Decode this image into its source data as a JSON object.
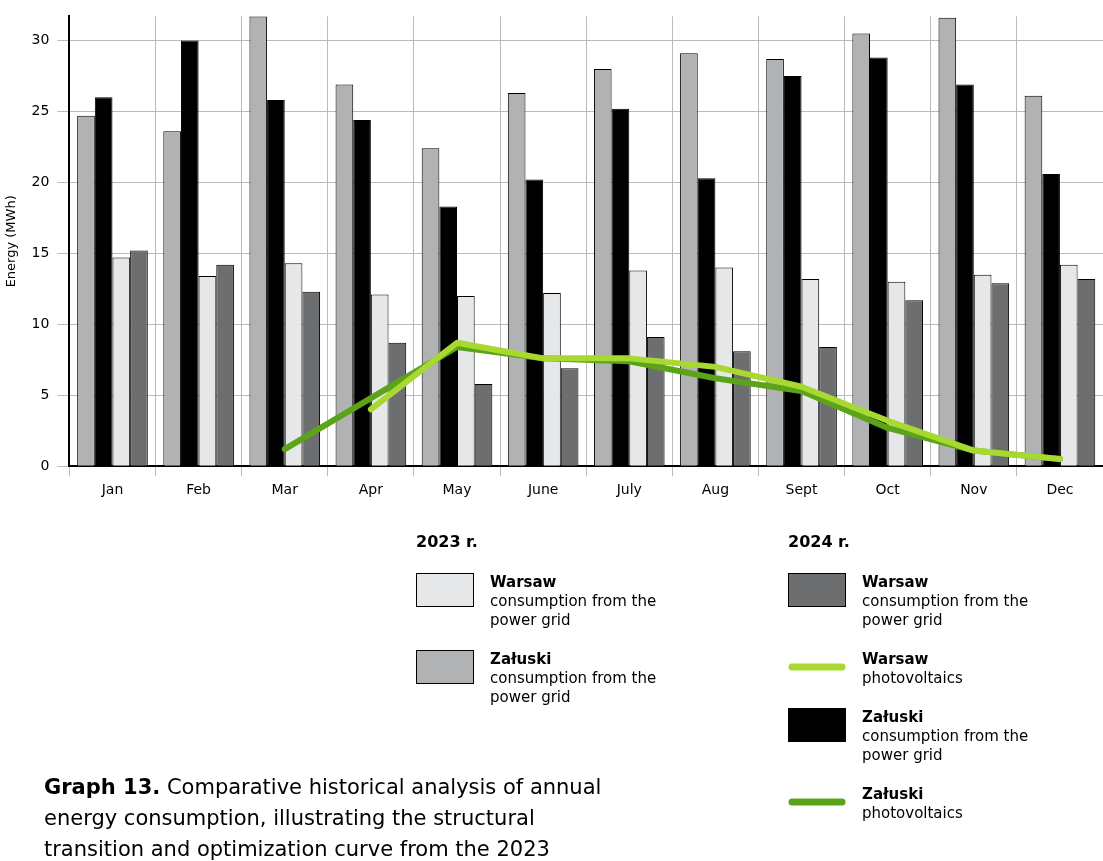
{
  "chart_data": {
    "type": "bar",
    "ylabel": "Energy (MWh)",
    "categories": [
      "Jan",
      "Feb",
      "Mar",
      "Apr",
      "May",
      "June",
      "July",
      "Aug",
      "Sept",
      "Oct",
      "Nov",
      "Dec"
    ],
    "series": [
      {
        "name": "Załuski consumption from the power grid",
        "color": "#b1b2b4",
        "values": [
          24.7,
          23.6,
          31.7,
          26.9,
          22.4,
          26.3,
          28.0,
          29.1,
          28.7,
          30.5,
          31.6,
          26.1
        ]
      },
      {
        "name": "Załuski consumption from the power grid",
        "color": "#000000",
        "values": [
          26.0,
          30.0,
          25.8,
          24.4,
          18.3,
          20.2,
          25.2,
          20.3,
          27.5,
          28.8,
          26.9,
          20.6
        ]
      },
      {
        "name": "Warsaw consumption from the power grid",
        "color": "#e6e7e8",
        "values": [
          14.7,
          13.4,
          14.3,
          12.1,
          12.0,
          12.2,
          13.8,
          14.0,
          13.2,
          13.0,
          13.5,
          14.2
        ]
      },
      {
        "name": "Warsaw consumption from the power grid",
        "color": "#6d6e70",
        "values": [
          15.2,
          14.2,
          12.3,
          8.7,
          5.8,
          6.9,
          9.1,
          8.1,
          8.4,
          11.7,
          12.9,
          13.2
        ]
      },
      {
        "name": "Warsaw photovoltaics",
        "type": "line",
        "color": "#a8d930",
        "values": [
          null,
          null,
          null,
          4.0,
          8.7,
          7.6,
          7.6,
          7.0,
          5.6,
          3.2,
          1.1,
          0.5
        ]
      },
      {
        "name": "Załuski photovoltaics",
        "type": "line",
        "color": "#5ba318",
        "values": [
          null,
          null,
          1.2,
          4.8,
          8.4,
          7.6,
          7.4,
          6.2,
          5.3,
          2.7,
          1.1,
          0.5
        ]
      }
    ],
    "ylim": [
      0,
      31.7
    ],
    "yticks": [
      0,
      5,
      10,
      15,
      20,
      25,
      30
    ],
    "grid": true,
    "legend": "bottom",
    "line_style": "solid",
    "marker": "none",
    "annotations": [
      "2023 r.",
      "2024 r.",
      "Graph 13. Comparative historical analysis of annual energy consumption, illustrating the structural transition and optimization curve from the 2023"
    ]
  }
}
